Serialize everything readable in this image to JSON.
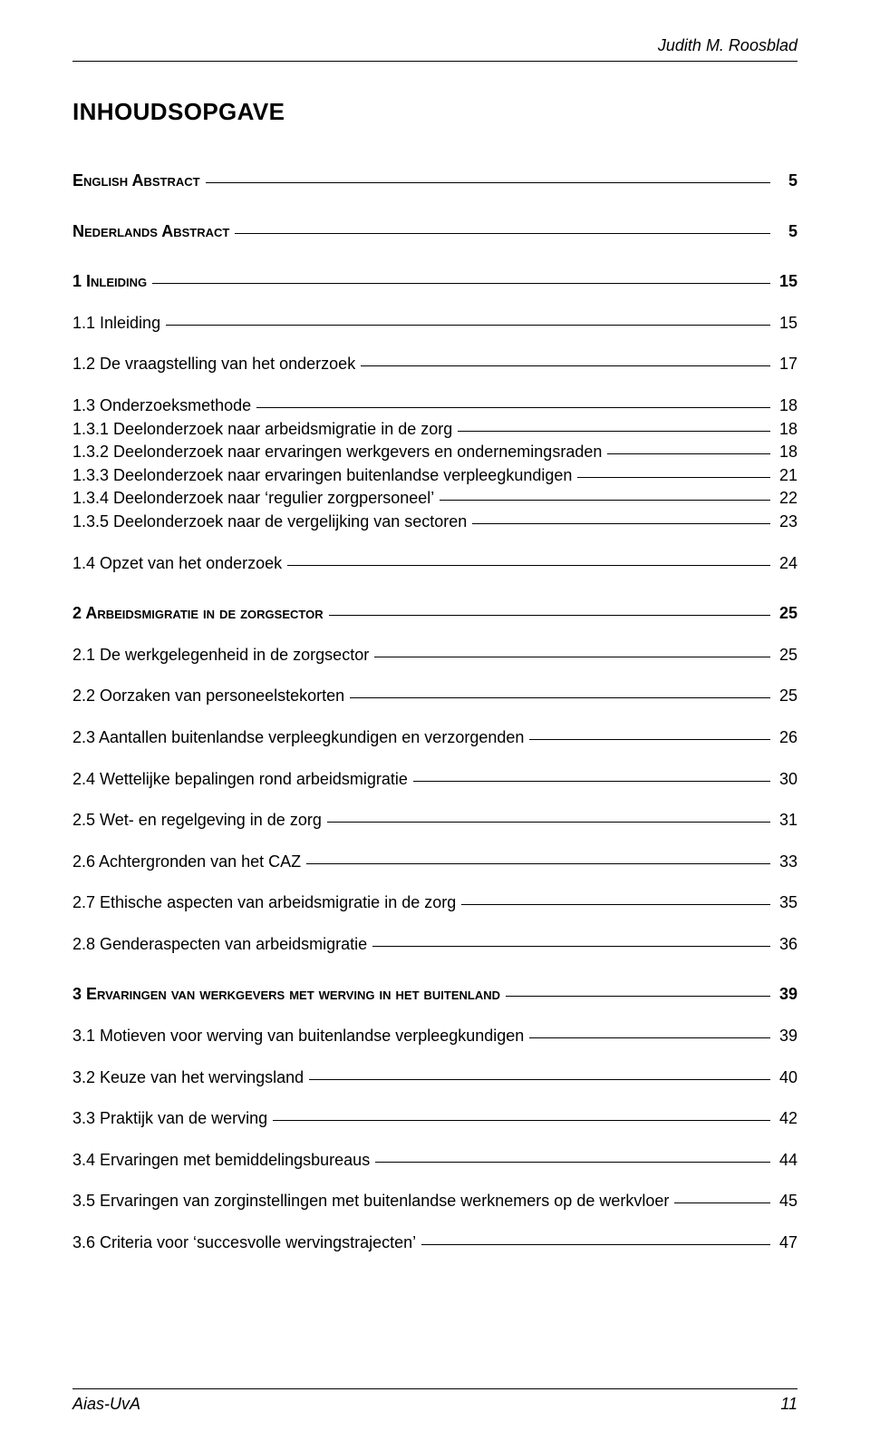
{
  "runningHead": "Judith M. Roosblad",
  "mainTitle": "INHOUDSOPGAVE",
  "items": [
    {
      "label": "English Abstract",
      "page": "5",
      "bold": true,
      "sc": true,
      "gap": "none"
    },
    {
      "label": "Nederlands Abstract",
      "page": "5",
      "bold": true,
      "sc": true,
      "gap": "large"
    },
    {
      "label": "1 Inleiding",
      "page": "15",
      "bold": true,
      "sc": true,
      "gap": "large"
    },
    {
      "label": "1.1 Inleiding",
      "page": "15",
      "bold": false,
      "sc": false,
      "gap": "med"
    },
    {
      "label": "1.2 De vraagstelling van het onderzoek",
      "page": "17",
      "bold": false,
      "sc": false,
      "gap": "med"
    },
    {
      "label": "1.3 Onderzoeksmethode",
      "page": "18",
      "bold": false,
      "sc": false,
      "gap": "med"
    },
    {
      "label": "1.3.1 Deelonderzoek naar arbeidsmigratie in de zorg",
      "page": "18",
      "bold": false,
      "sc": false,
      "gap": "small"
    },
    {
      "label": "1.3.2 Deelonderzoek naar ervaringen werkgevers en ondernemingsraden",
      "page": "18",
      "bold": false,
      "sc": false,
      "gap": "small"
    },
    {
      "label": "1.3.3 Deelonderzoek naar ervaringen buitenlandse verpleegkundigen",
      "page": "21",
      "bold": false,
      "sc": false,
      "gap": "small"
    },
    {
      "label": "1.3.4 Deelonderzoek naar  ‘regulier zorgpersoneel’",
      "page": "22",
      "bold": false,
      "sc": false,
      "gap": "small"
    },
    {
      "label": "1.3.5 Deelonderzoek naar de vergelijking van sectoren",
      "page": "23",
      "bold": false,
      "sc": false,
      "gap": "small"
    },
    {
      "label": "1.4 Opzet van het onderzoek",
      "page": "24",
      "bold": false,
      "sc": false,
      "gap": "med"
    },
    {
      "label": "2 Arbeidsmigratie in de zorgsector",
      "page": "25",
      "bold": true,
      "sc": true,
      "gap": "large"
    },
    {
      "label": "2.1 De werkgelegenheid in de zorgsector",
      "page": "25",
      "bold": false,
      "sc": false,
      "gap": "med"
    },
    {
      "label": "2.2 Oorzaken van personeelstekorten",
      "page": "25",
      "bold": false,
      "sc": false,
      "gap": "med"
    },
    {
      "label": "2.3 Aantallen buitenlandse verpleegkundigen en verzorgenden",
      "page": "26",
      "bold": false,
      "sc": false,
      "gap": "med"
    },
    {
      "label": "2.4 Wettelijke bepalingen rond arbeidsmigratie",
      "page": "30",
      "bold": false,
      "sc": false,
      "gap": "med"
    },
    {
      "label": "2.5 Wet- en regelgeving in de zorg",
      "page": "31",
      "bold": false,
      "sc": false,
      "gap": "med"
    },
    {
      "label": "2.6 Achtergronden van het CAZ",
      "page": "33",
      "bold": false,
      "sc": false,
      "gap": "med"
    },
    {
      "label": "2.7 Ethische aspecten van arbeidsmigratie in de zorg",
      "page": "35",
      "bold": false,
      "sc": false,
      "gap": "med"
    },
    {
      "label": "2.8 Genderaspecten van arbeidsmigratie",
      "page": "36",
      "bold": false,
      "sc": false,
      "gap": "med"
    },
    {
      "label": "3 Ervaringen van werkgevers met werving in het buitenland",
      "page": "39",
      "bold": true,
      "sc": true,
      "gap": "large"
    },
    {
      "label": "3.1 Motieven voor werving van buitenlandse verpleegkundigen",
      "page": "39",
      "bold": false,
      "sc": false,
      "gap": "med"
    },
    {
      "label": "3.2 Keuze van het wervingsland",
      "page": "40",
      "bold": false,
      "sc": false,
      "gap": "med"
    },
    {
      "label": "3.3 Praktijk van de werving",
      "page": "42",
      "bold": false,
      "sc": false,
      "gap": "med"
    },
    {
      "label": "3.4 Ervaringen met bemiddelingsbureaus",
      "page": "44",
      "bold": false,
      "sc": false,
      "gap": "med"
    },
    {
      "label": "3.5 Ervaringen van zorginstellingen met buitenlandse werknemers op de werkvloer",
      "page": "45",
      "bold": false,
      "sc": false,
      "gap": "med"
    },
    {
      "label": "3.6 Criteria voor ‘succesvolle wervingstrajecten’",
      "page": "47",
      "bold": false,
      "sc": false,
      "gap": "med"
    }
  ],
  "footerLeft": "Aias-UvA",
  "footerRight": "11"
}
